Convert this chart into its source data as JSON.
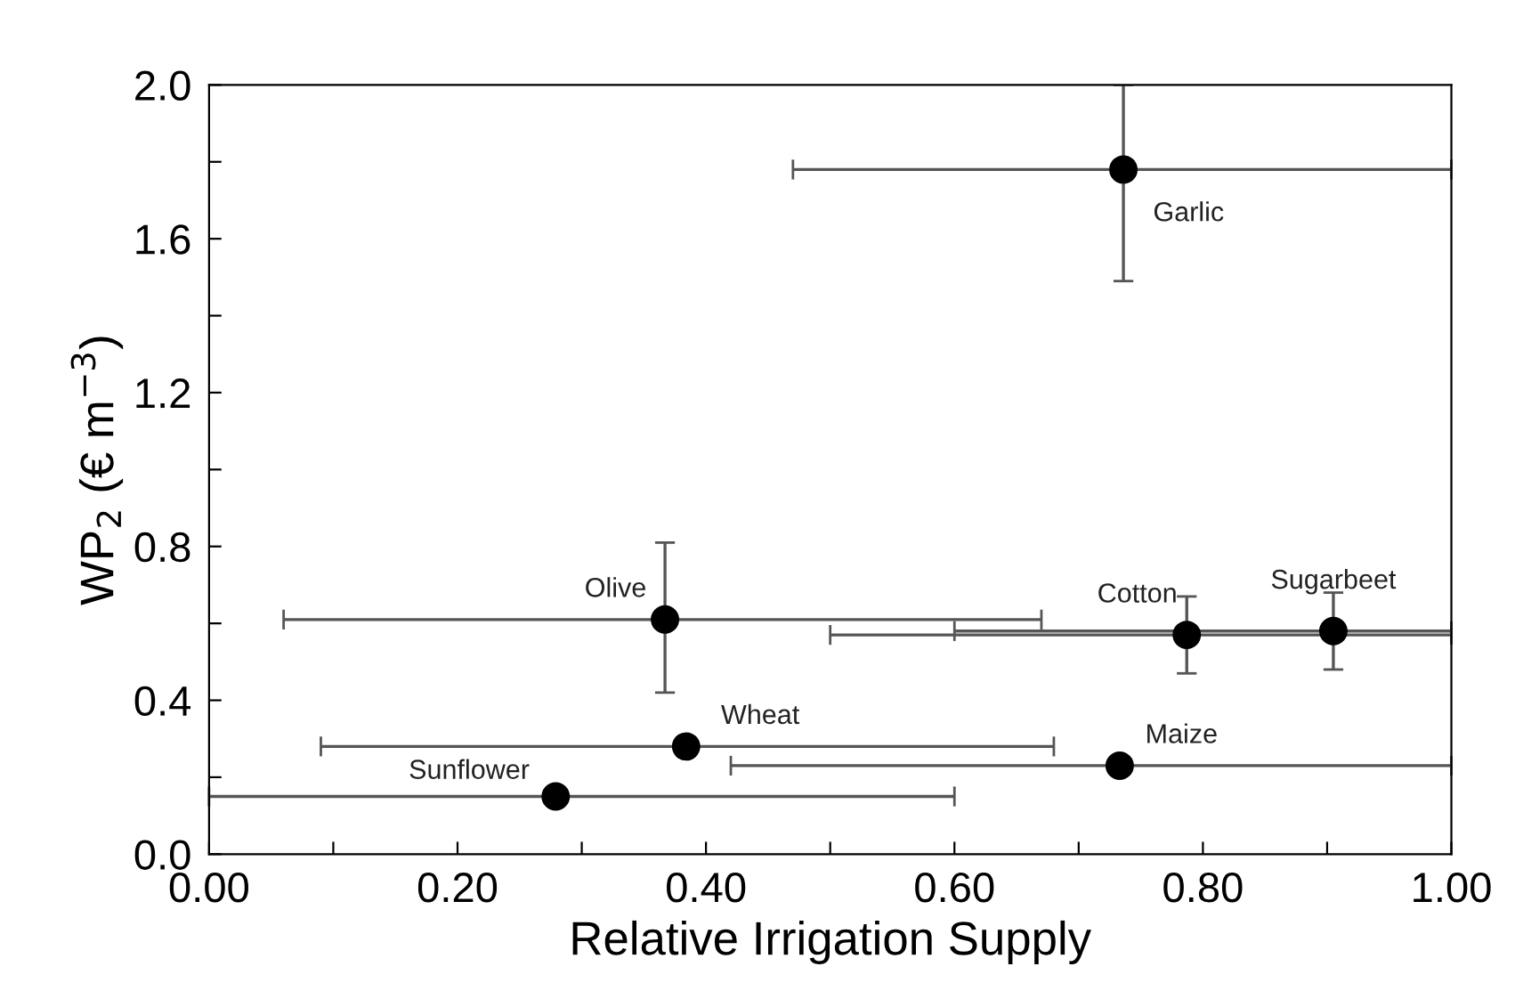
{
  "chart_data": {
    "type": "scatter",
    "xlabel": "Relative Irrigation Supply",
    "ylabel": "WP$_{2}$ (€ m$^{−3}$)",
    "x": [
      0.736,
      0.367,
      0.787,
      0.905,
      0.384,
      0.733,
      0.279
    ],
    "values": [
      1.78,
      0.61,
      0.57,
      0.58,
      0.28,
      0.23,
      0.15
    ],
    "errors": [
      [
        1.49,
        2.0
      ],
      [
        0.42,
        0.81
      ],
      [
        0.47,
        0.67
      ],
      [
        0.48,
        0.68
      ],
      null,
      null,
      null
    ],
    "xerrors": [
      [
        0.47,
        1.0
      ],
      [
        0.06,
        0.67
      ],
      [
        0.5,
        1.0
      ],
      [
        0.6,
        1.0
      ],
      [
        0.09,
        0.68
      ],
      [
        0.42,
        1.0
      ],
      [
        0.0,
        0.6
      ]
    ],
    "color": "#000000",
    "marker": "circle",
    "annotations": [
      {
        "text": "Garlic",
        "x": 0.736,
        "y": 1.78
      },
      {
        "text": "Olive",
        "x": 0.367,
        "y": 0.61
      },
      {
        "text": "Cotton",
        "x": 0.787,
        "y": 0.57
      },
      {
        "text": "Sugarbeet",
        "x": 0.905,
        "y": 0.58
      },
      {
        "text": "Wheat",
        "x": 0.384,
        "y": 0.28
      },
      {
        "text": "Maize",
        "x": 0.733,
        "y": 0.23
      },
      {
        "text": "Sunflower",
        "x": 0.279,
        "y": 0.15
      }
    ],
    "xlim": [
      0.0,
      1.0
    ],
    "ylim": [
      0.0,
      2.0
    ],
    "xticks": [
      "0.00",
      {
        "value": 0.1,
        "label": null
      },
      {
        "value": 0.2,
        "label": "0.20"
      },
      {
        "value": 0.3,
        "label": null
      },
      {
        "value": 0.4,
        "label": "0.40"
      },
      {
        "value": 0.5,
        "label": null
      },
      {
        "value": 0.6,
        "label": "0.60"
      },
      {
        "value": 0.7,
        "label": null
      },
      {
        "value": 0.8,
        "label": "0.80"
      },
      {
        "value": 0.9,
        "label": null
      },
      {
        "value": 1.0,
        "label": "1.00"
      }
    ],
    "yticks": [
      {
        "value": 0.0,
        "label": "0.0"
      },
      {
        "value": 0.2,
        "label": null
      },
      {
        "value": 0.4,
        "label": "0.4"
      },
      {
        "value": 0.6,
        "label": null
      },
      {
        "value": 0.8,
        "label": "0.8"
      },
      {
        "value": 1.0,
        "label": null
      },
      {
        "value": 1.2,
        "label": "1.2"
      },
      {
        "value": 1.4,
        "label": null
      },
      {
        "value": 1.6,
        "label": "1.6"
      },
      {
        "value": 1.8,
        "label": null
      },
      {
        "value": 2.0,
        "label": "2.0"
      }
    ],
    "grid": false,
    "legend": false
  }
}
